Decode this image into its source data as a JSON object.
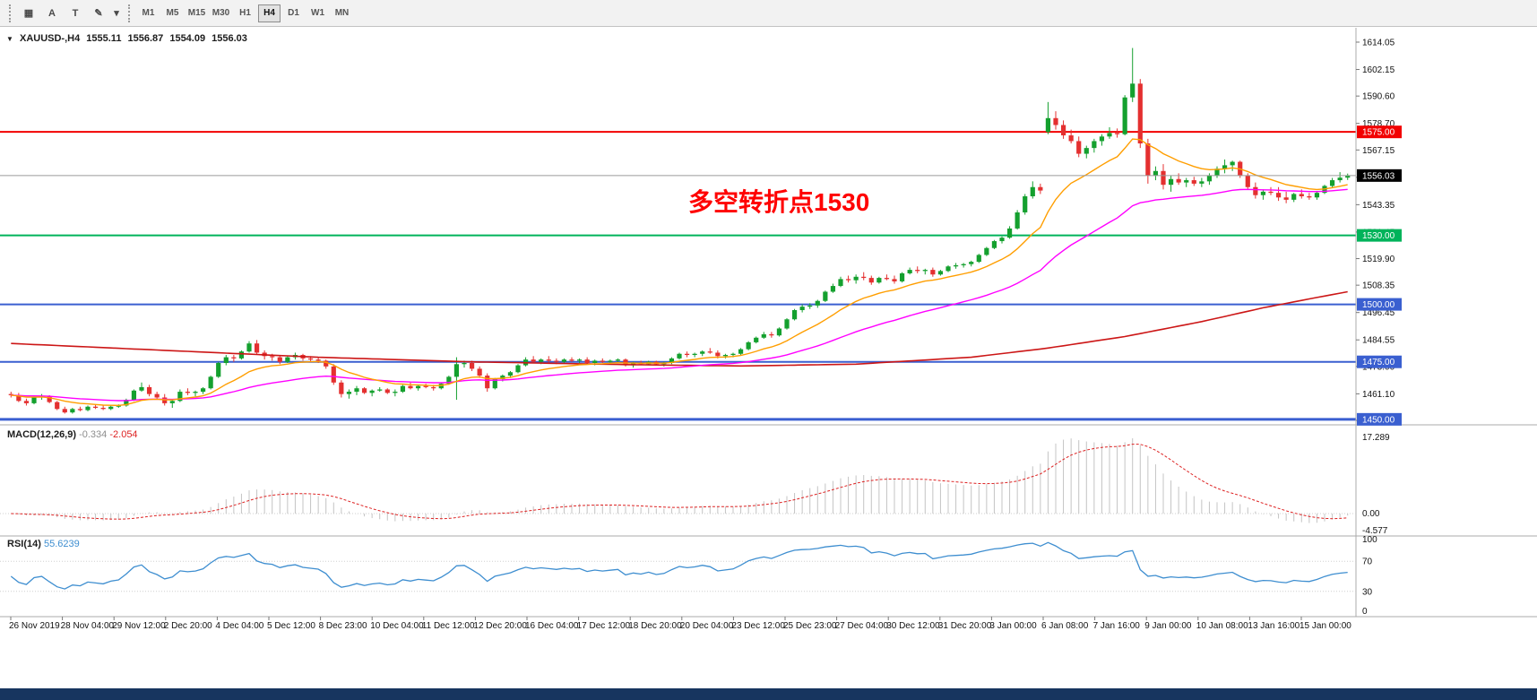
{
  "toolbar": {
    "tools": [
      {
        "name": "grid-tool",
        "glyph": "▦"
      },
      {
        "name": "text-a-tool",
        "glyph": "A"
      },
      {
        "name": "text-t-tool",
        "glyph": "T"
      },
      {
        "name": "draw-shapes-tool",
        "glyph": "✎"
      },
      {
        "name": "shapes-dropdown",
        "glyph": "▾"
      }
    ],
    "timeframes": [
      "M1",
      "M5",
      "M15",
      "M30",
      "H1",
      "H4",
      "D1",
      "W1",
      "MN"
    ],
    "active_timeframe": "H4"
  },
  "chart": {
    "title": {
      "symbol": "XAUUSD-,H4",
      "open": "1555.11",
      "high": "1556.87",
      "low": "1554.09",
      "close": "1556.03"
    },
    "annotation": "多空转折点1530",
    "current_price": "1556.03",
    "axis_ticks": [
      1614.05,
      1602.15,
      1590.6,
      1578.7,
      1567.15,
      1555.25,
      1543.35,
      1531.45,
      1519.9,
      1508.35,
      1496.45,
      1484.55,
      1473.0,
      1461.1,
      1449.55
    ],
    "levels": [
      {
        "label": "1575.00",
        "price": 1575,
        "color": "#f20000",
        "width": 2
      },
      {
        "label": "1530.00",
        "price": 1530,
        "color": "#00b35a",
        "width": 2
      },
      {
        "label": "1500.00",
        "price": 1500,
        "color": "#3a5fd0",
        "width": 2
      },
      {
        "label": "1475.00",
        "price": 1475,
        "color": "#3a5fd0",
        "width": 2
      },
      {
        "label": "1450.00",
        "price": 1450,
        "color": "#3a5fd0",
        "width": 3
      }
    ]
  },
  "macd_panel": {
    "label": "MACD(12,26,9)",
    "value_main": "-0.334",
    "value_signal": "-2.054",
    "axis": [
      "17.289",
      "0.00",
      "-4.577"
    ]
  },
  "rsi_panel": {
    "label": "RSI(14)",
    "value": "55.6239",
    "axis": [
      "100",
      "70",
      "30",
      "0"
    ],
    "levels": [
      70,
      30
    ]
  },
  "colors": {
    "up": "#14a02e",
    "down": "#e43030",
    "ma_fast": "#ff9e00",
    "ma_mid": "#ff00ff",
    "ma_slow": "#cc1616",
    "price_line": "#9a9a9a",
    "price_badge_bg": "#000000",
    "macd_hist": "#c4c4c4",
    "macd_signal": "#dd2222",
    "rsi_line": "#3e8ed0",
    "panel_border": "#ababab",
    "axis_text": "#111111",
    "scrollbar": "#17355f",
    "annotation": "#ff0000"
  },
  "chart_data": {
    "type": "candlestick",
    "symbol": "XAUUSD",
    "timeframe": "H4",
    "y_range": [
      1449.55,
      1614.05
    ],
    "x_labels": [
      "26 Nov 2019",
      "28 Nov 04:00",
      "29 Nov 12:00",
      "2 Dec 20:00",
      "4 Dec 04:00",
      "5 Dec 12:00",
      "8 Dec 23:00",
      "10 Dec 04:00",
      "11 Dec 12:00",
      "12 Dec 20:00",
      "16 Dec 04:00",
      "17 Dec 12:00",
      "18 Dec 20:00",
      "20 Dec 04:00",
      "23 Dec 12:00",
      "25 Dec 23:00",
      "27 Dec 04:00",
      "30 Dec 12:00",
      "31 Dec 20:00",
      "3 Jan 00:00",
      "6 Jan 08:00",
      "7 Jan 16:00",
      "9 Jan 00:00",
      "10 Jan 08:00",
      "13 Jan 16:00",
      "15 Jan 00:00"
    ],
    "indicators": {
      "ma_fast_period": 13,
      "ma_mid_period": 40,
      "ma_slow_points": [
        [
          0,
          1483
        ],
        [
          20,
          1480
        ],
        [
          40,
          1477
        ],
        [
          60,
          1475
        ],
        [
          80,
          1473.8
        ],
        [
          95,
          1473.2
        ],
        [
          110,
          1474
        ],
        [
          125,
          1477
        ],
        [
          135,
          1481
        ],
        [
          145,
          1486
        ],
        [
          155,
          1492.5
        ],
        [
          163,
          1498.5
        ],
        [
          170,
          1503
        ],
        [
          174,
          1505.5
        ]
      ],
      "macd": {
        "fast": 12,
        "slow": 26,
        "signal": 9
      },
      "rsi_period": 14
    },
    "candles": [
      [
        1461,
        1462,
        1459.5,
        1460.5
      ],
      [
        1460.5,
        1461.5,
        1457.5,
        1458
      ],
      [
        1458,
        1459,
        1456,
        1457
      ],
      [
        1457,
        1460,
        1456.5,
        1459.5
      ],
      [
        1459.5,
        1461,
        1458.5,
        1460
      ],
      [
        1460,
        1460.5,
        1457,
        1457.5
      ],
      [
        1457.5,
        1458,
        1454,
        1454.5
      ],
      [
        1454.5,
        1455.5,
        1452.5,
        1453
      ],
      [
        1453,
        1455,
        1452.5,
        1454.5
      ],
      [
        1454.5,
        1455.5,
        1453.5,
        1454
      ],
      [
        1454,
        1456,
        1453.5,
        1455.5
      ],
      [
        1455.5,
        1456.5,
        1454.5,
        1455
      ],
      [
        1455,
        1456,
        1454,
        1454.5
      ],
      [
        1454.5,
        1456,
        1454,
        1455.5
      ],
      [
        1455.5,
        1456.5,
        1455,
        1456
      ],
      [
        1456,
        1459,
        1455.5,
        1458.5
      ],
      [
        1458.5,
        1463,
        1458,
        1462.5
      ],
      [
        1462.5,
        1466,
        1462,
        1464
      ],
      [
        1464,
        1465,
        1460,
        1461
      ],
      [
        1461,
        1462,
        1459,
        1459.5
      ],
      [
        1459.5,
        1461,
        1456,
        1457
      ],
      [
        1457,
        1458.5,
        1455,
        1458
      ],
      [
        1458,
        1463,
        1457.5,
        1462
      ],
      [
        1462,
        1463.5,
        1460.5,
        1461.5
      ],
      [
        1461.5,
        1462.5,
        1460,
        1462
      ],
      [
        1462,
        1464,
        1461,
        1463.5
      ],
      [
        1463.5,
        1469,
        1463,
        1468.5
      ],
      [
        1468.5,
        1475,
        1468,
        1474.5
      ],
      [
        1474.5,
        1478,
        1473.5,
        1477
      ],
      [
        1477,
        1478,
        1475,
        1476.5
      ],
      [
        1476.5,
        1480,
        1476,
        1479.5
      ],
      [
        1479.5,
        1484,
        1479,
        1483
      ],
      [
        1483,
        1484.5,
        1478,
        1479
      ],
      [
        1479,
        1480,
        1476,
        1477.5
      ],
      [
        1477.5,
        1478.5,
        1475.5,
        1477
      ],
      [
        1477,
        1478,
        1474,
        1475
      ],
      [
        1475,
        1477.5,
        1474.5,
        1477
      ],
      [
        1477,
        1479,
        1476,
        1478
      ],
      [
        1478,
        1478.5,
        1475.5,
        1476.5
      ],
      [
        1476.5,
        1477.5,
        1475,
        1476
      ],
      [
        1476,
        1477,
        1474.5,
        1475.5
      ],
      [
        1475.5,
        1476,
        1472,
        1473
      ],
      [
        1473,
        1474,
        1465,
        1466
      ],
      [
        1466,
        1467,
        1459.5,
        1461
      ],
      [
        1461,
        1463,
        1459,
        1462
      ],
      [
        1462,
        1464.5,
        1460.5,
        1463.5
      ],
      [
        1463.5,
        1464,
        1461,
        1461.5
      ],
      [
        1461.5,
        1463,
        1460,
        1462.5
      ],
      [
        1462.5,
        1464,
        1462,
        1463
      ],
      [
        1463,
        1463.5,
        1461,
        1461.5
      ],
      [
        1461.5,
        1463,
        1460,
        1462
      ],
      [
        1462,
        1465,
        1461.5,
        1464.5
      ],
      [
        1464.5,
        1466,
        1463,
        1463.5
      ],
      [
        1463.5,
        1465,
        1462.5,
        1464.5
      ],
      [
        1464.5,
        1465.5,
        1463.5,
        1464
      ],
      [
        1464,
        1465,
        1462.5,
        1463.5
      ],
      [
        1463.5,
        1466,
        1463,
        1465.5
      ],
      [
        1465.5,
        1469,
        1465,
        1468.5
      ],
      [
        1468.5,
        1477,
        1458.5,
        1474
      ],
      [
        1474,
        1475.5,
        1472.5,
        1474.5
      ],
      [
        1474.5,
        1475.5,
        1471,
        1472
      ],
      [
        1472,
        1473,
        1468,
        1469
      ],
      [
        1469,
        1470,
        1462,
        1463.5
      ],
      [
        1463.5,
        1468,
        1463,
        1467.5
      ],
      [
        1467.5,
        1469.5,
        1466.5,
        1469
      ],
      [
        1469,
        1471,
        1468,
        1470.5
      ],
      [
        1470.5,
        1474,
        1470,
        1473.5
      ],
      [
        1473.5,
        1477,
        1473,
        1476
      ],
      [
        1476,
        1477.5,
        1474.5,
        1475
      ],
      [
        1475,
        1476.5,
        1474,
        1476
      ],
      [
        1476,
        1477.5,
        1474.5,
        1475.5
      ],
      [
        1475.5,
        1476.5,
        1474,
        1475
      ],
      [
        1475,
        1476.5,
        1474.5,
        1476
      ],
      [
        1476,
        1477,
        1475,
        1475.5
      ],
      [
        1475.5,
        1476.5,
        1474.5,
        1476
      ],
      [
        1476,
        1477,
        1474,
        1474.5
      ],
      [
        1474.5,
        1476,
        1473.5,
        1475.5
      ],
      [
        1475.5,
        1476.5,
        1474.5,
        1475
      ],
      [
        1475,
        1476,
        1474,
        1475.5
      ],
      [
        1475.5,
        1476.5,
        1475,
        1476
      ],
      [
        1476,
        1476.5,
        1473,
        1473.5
      ],
      [
        1473.5,
        1475,
        1472.5,
        1474.5
      ],
      [
        1474.5,
        1475.5,
        1473.5,
        1474
      ],
      [
        1474,
        1475.5,
        1473.5,
        1475
      ],
      [
        1475,
        1475.5,
        1473.5,
        1474
      ],
      [
        1474,
        1475,
        1473,
        1474.5
      ],
      [
        1474.5,
        1477,
        1474,
        1476.5
      ],
      [
        1476.5,
        1479,
        1476,
        1478.5
      ],
      [
        1478.5,
        1479.5,
        1477,
        1478
      ],
      [
        1478,
        1479,
        1477,
        1478.5
      ],
      [
        1478.5,
        1480,
        1477.5,
        1479.5
      ],
      [
        1479.5,
        1481,
        1478.5,
        1479
      ],
      [
        1479,
        1480,
        1476.5,
        1477.5
      ],
      [
        1477.5,
        1478.5,
        1476.5,
        1478
      ],
      [
        1478,
        1479,
        1477,
        1478.5
      ],
      [
        1478.5,
        1481,
        1478,
        1480.5
      ],
      [
        1480.5,
        1484,
        1480,
        1483.5
      ],
      [
        1483.5,
        1486,
        1483,
        1485.5
      ],
      [
        1485.5,
        1488,
        1485,
        1487
      ],
      [
        1487,
        1488,
        1485.5,
        1486.5
      ],
      [
        1486.5,
        1490,
        1486,
        1489.5
      ],
      [
        1489.5,
        1494,
        1489,
        1493.5
      ],
      [
        1493.5,
        1498,
        1493,
        1497.5
      ],
      [
        1497.5,
        1500,
        1496.5,
        1499
      ],
      [
        1499,
        1500.5,
        1498,
        1499.5
      ],
      [
        1499.5,
        1502,
        1498.5,
        1501.5
      ],
      [
        1501.5,
        1506,
        1501,
        1505.5
      ],
      [
        1505.5,
        1509,
        1505,
        1508
      ],
      [
        1508,
        1512,
        1507.5,
        1511
      ],
      [
        1511,
        1512.5,
        1509.5,
        1510.5
      ],
      [
        1510.5,
        1513,
        1509,
        1512
      ],
      [
        1512,
        1514,
        1510.5,
        1511.5
      ],
      [
        1511.5,
        1512.5,
        1508.5,
        1509.5
      ],
      [
        1509.5,
        1512,
        1509,
        1511.5
      ],
      [
        1511.5,
        1513,
        1510.5,
        1511
      ],
      [
        1511,
        1512.5,
        1509,
        1510
      ],
      [
        1510,
        1514,
        1509.5,
        1513.5
      ],
      [
        1513.5,
        1516,
        1513,
        1515
      ],
      [
        1515,
        1516.5,
        1513.5,
        1514.5
      ],
      [
        1514.5,
        1515.5,
        1513,
        1515
      ],
      [
        1515,
        1516,
        1512,
        1513
      ],
      [
        1513,
        1515,
        1512.5,
        1514.5
      ],
      [
        1514.5,
        1517,
        1514,
        1516.5
      ],
      [
        1516.5,
        1518,
        1515.5,
        1517
      ],
      [
        1517,
        1518,
        1516,
        1517.5
      ],
      [
        1517.5,
        1519,
        1516.5,
        1518.5
      ],
      [
        1518.5,
        1522,
        1518,
        1521.5
      ],
      [
        1521.5,
        1525,
        1521,
        1524.5
      ],
      [
        1524.5,
        1528,
        1524,
        1527.5
      ],
      [
        1527.5,
        1529.5,
        1526.5,
        1529
      ],
      [
        1529,
        1534,
        1528.5,
        1533
      ],
      [
        1533,
        1541,
        1532.5,
        1540
      ],
      [
        1540,
        1548,
        1539,
        1547
      ],
      [
        1547,
        1553.5,
        1546,
        1551
      ],
      [
        1551,
        1552.5,
        1548,
        1549.5
      ],
      [
        1575,
        1588,
        1574,
        1581
      ],
      [
        1581,
        1584,
        1576,
        1578
      ],
      [
        1578,
        1580,
        1572,
        1573.5
      ],
      [
        1573.5,
        1576,
        1570,
        1571
      ],
      [
        1571,
        1573,
        1564,
        1565.5
      ],
      [
        1565.5,
        1569,
        1563.5,
        1568
      ],
      [
        1568,
        1572,
        1566,
        1571
      ],
      [
        1571,
        1574,
        1569,
        1573
      ],
      [
        1573,
        1577,
        1572,
        1574.5
      ],
      [
        1574.5,
        1576.5,
        1572.5,
        1574
      ],
      [
        1574,
        1591,
        1573.5,
        1590
      ],
      [
        1590,
        1611.5,
        1588,
        1596
      ],
      [
        1596,
        1598,
        1568,
        1570
      ],
      [
        1570,
        1572,
        1552.5,
        1556
      ],
      [
        1556,
        1560,
        1554,
        1558
      ],
      [
        1558,
        1561,
        1550,
        1552
      ],
      [
        1552,
        1556,
        1549,
        1554.5
      ],
      [
        1554.5,
        1557,
        1552,
        1553
      ],
      [
        1553,
        1555,
        1551,
        1554
      ],
      [
        1554,
        1555.5,
        1551.5,
        1552.5
      ],
      [
        1552.5,
        1555,
        1551,
        1553.5
      ],
      [
        1553.5,
        1557,
        1552,
        1556
      ],
      [
        1556,
        1560,
        1555,
        1559
      ],
      [
        1559,
        1563,
        1557,
        1560.5
      ],
      [
        1560.5,
        1562.5,
        1558,
        1562
      ],
      [
        1562,
        1562.5,
        1555,
        1556
      ],
      [
        1556,
        1557,
        1550,
        1551
      ],
      [
        1551,
        1553,
        1546,
        1547.5
      ],
      [
        1547.5,
        1550,
        1545.5,
        1549
      ],
      [
        1549,
        1551,
        1547.5,
        1548.5
      ],
      [
        1548.5,
        1551,
        1545,
        1546.5
      ],
      [
        1546.5,
        1549,
        1544,
        1545.5
      ],
      [
        1545.5,
        1548.5,
        1544.5,
        1548
      ],
      [
        1548,
        1550,
        1546,
        1547
      ],
      [
        1547,
        1548.5,
        1545.5,
        1546.5
      ],
      [
        1546.5,
        1549,
        1545.5,
        1548.5
      ],
      [
        1548.5,
        1552,
        1548,
        1551.5
      ],
      [
        1551.5,
        1555,
        1550.5,
        1554
      ],
      [
        1554,
        1557.5,
        1553,
        1555.11
      ],
      [
        1555.11,
        1556.87,
        1554.09,
        1556.03
      ]
    ]
  }
}
